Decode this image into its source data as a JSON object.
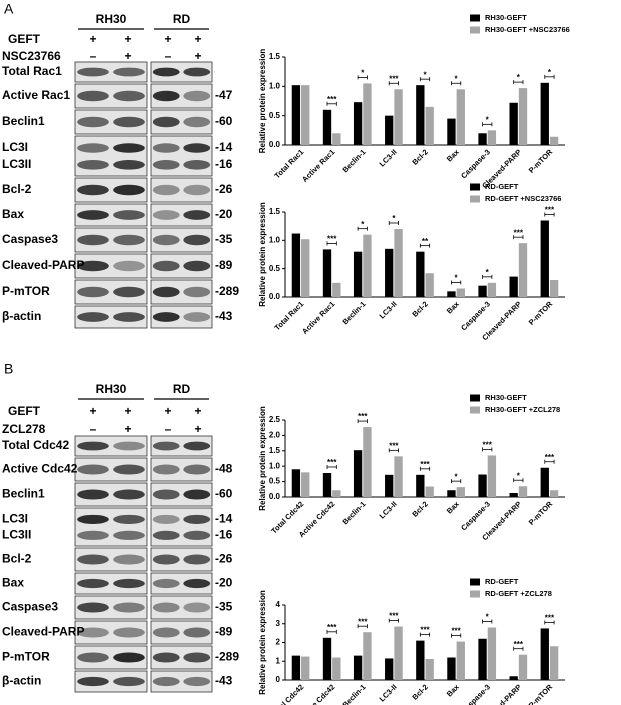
{
  "panel_labels": [
    "A",
    "B"
  ],
  "blots": [
    {
      "cell_lines": [
        "RH30",
        "RD"
      ],
      "treatments": [
        {
          "name": "GEFT",
          "signs": [
            "+",
            "+",
            "+",
            "+"
          ]
        },
        {
          "name": "NSC23766",
          "signs": [
            "–",
            "+",
            "–",
            "+"
          ]
        }
      ],
      "rows": [
        {
          "labels": [
            "Total Rac1"
          ],
          "mw": []
        },
        {
          "labels": [
            "Active Rac1"
          ],
          "mw": [
            "-47"
          ]
        },
        {
          "labels": [
            "Beclin1"
          ],
          "mw": [
            "-60"
          ]
        },
        {
          "labels": [
            "LC3I",
            "LC3II"
          ],
          "mw": [
            "-14",
            "-16"
          ]
        },
        {
          "labels": [
            "Bcl-2"
          ],
          "mw": [
            "-26"
          ]
        },
        {
          "labels": [
            "Bax"
          ],
          "mw": [
            "-20"
          ]
        },
        {
          "labels": [
            "Caspase3"
          ],
          "mw": [
            "-35"
          ]
        },
        {
          "labels": [
            "Cleaved-PARP"
          ],
          "mw": [
            "-89"
          ]
        },
        {
          "labels": [
            "P-mTOR"
          ],
          "mw": [
            "-289"
          ]
        },
        {
          "labels": [
            "β-actin"
          ],
          "mw": [
            "-43"
          ]
        }
      ]
    },
    {
      "cell_lines": [
        "RH30",
        "RD"
      ],
      "treatments": [
        {
          "name": "GEFT",
          "signs": [
            "+",
            "+",
            "+",
            "+"
          ]
        },
        {
          "name": "ZCL278",
          "signs": [
            "–",
            "+",
            "–",
            "+"
          ]
        }
      ],
      "rows": [
        {
          "labels": [
            "Total Cdc42"
          ],
          "mw": []
        },
        {
          "labels": [
            "Active Cdc42"
          ],
          "mw": [
            "-48"
          ]
        },
        {
          "labels": [
            "Beclin1"
          ],
          "mw": [
            "-60"
          ]
        },
        {
          "labels": [
            "LC3I",
            "LC3II"
          ],
          "mw": [
            "-14",
            "-16"
          ]
        },
        {
          "labels": [
            "Bcl-2"
          ],
          "mw": [
            "-26"
          ]
        },
        {
          "labels": [
            "Bax"
          ],
          "mw": [
            "-20"
          ]
        },
        {
          "labels": [
            "Caspase3"
          ],
          "mw": [
            "-35"
          ]
        },
        {
          "labels": [
            "Cleaved-PARP"
          ],
          "mw": [
            "-89"
          ]
        },
        {
          "labels": [
            "P-mTOR"
          ],
          "mw": [
            "-289"
          ]
        },
        {
          "labels": [
            "β-actin"
          ],
          "mw": [
            "-43"
          ]
        }
      ]
    }
  ],
  "chart_data": [
    {
      "type": "bar",
      "y_label": "Relative protein expression",
      "legend": "upper right",
      "categories": [
        "Total Rac1",
        "Active Rac1",
        "Beclin-1",
        "LC3-II",
        "Bcl-2",
        "Bax",
        "Caspase-3",
        "Cleaved-PARP",
        "P-mTOR"
      ],
      "series": [
        {
          "name": "RH30-GEFT",
          "color": "#000000",
          "values": [
            1.02,
            0.6,
            0.73,
            0.5,
            1.02,
            0.45,
            0.2,
            0.72,
            1.06
          ]
        },
        {
          "name": "RH30-GEFT +NSC23766",
          "color": "#a6a6a6",
          "values": [
            1.02,
            0.2,
            1.05,
            0.95,
            0.65,
            0.95,
            0.25,
            0.97,
            0.14
          ]
        }
      ],
      "significance": [
        null,
        "***",
        "*",
        "***",
        "*",
        "*",
        "*",
        "*",
        "*"
      ],
      "ylim": [
        0,
        1.5
      ],
      "yticks": [
        {
          "value": 0,
          "label": "0.0"
        },
        {
          "value": 0.5,
          "label": "0.5"
        },
        {
          "value": 1,
          "label": "1.0"
        },
        {
          "value": 1.5,
          "label": "1.5"
        }
      ]
    },
    {
      "type": "bar",
      "y_label": "Relative protein expression",
      "legend": "upper right",
      "categories": [
        "Total Rac1",
        "Active Rac1",
        "Beclin-1",
        "LC3-II",
        "Bcl-2",
        "Bax",
        "Caspase-3",
        "Cleaved-PARP",
        "P-mTOR"
      ],
      "series": [
        {
          "name": "RD-GEFT",
          "color": "#000000",
          "values": [
            1.12,
            0.84,
            0.8,
            0.85,
            0.8,
            0.1,
            0.2,
            0.36,
            1.35
          ]
        },
        {
          "name": "RD-GEFT +NSC23766",
          "color": "#a6a6a6",
          "values": [
            1.02,
            0.25,
            1.1,
            1.2,
            0.42,
            0.15,
            0.25,
            0.95,
            0.3
          ]
        }
      ],
      "significance": [
        null,
        "***",
        "*",
        "*",
        "**",
        "*",
        "*",
        "***",
        "***"
      ],
      "ylim": [
        0,
        1.5
      ],
      "yticks": [
        {
          "value": 0,
          "label": "0.0"
        },
        {
          "value": 0.5,
          "label": "0.5"
        },
        {
          "value": 1,
          "label": "1.0"
        },
        {
          "value": 1.5,
          "label": "1.5"
        }
      ]
    },
    {
      "type": "bar",
      "y_label": "Relative protein expression",
      "legend": "upper right",
      "categories": [
        "Total Cdc42",
        "Active Cdc42",
        "Beclin-1",
        "LC3-II",
        "Bcl-2",
        "Bax",
        "Caspase-3",
        "Cleaved-PARP",
        "P-mTOR"
      ],
      "series": [
        {
          "name": "RH30-GEFT",
          "color": "#000000",
          "values": [
            0.9,
            0.78,
            1.52,
            0.72,
            0.72,
            0.22,
            0.73,
            0.13,
            0.95
          ]
        },
        {
          "name": "RH30-GEFT +ZCL278",
          "color": "#a6a6a6",
          "values": [
            0.8,
            0.22,
            2.27,
            1.32,
            0.34,
            0.32,
            1.35,
            0.35,
            0.22
          ]
        }
      ],
      "significance": [
        null,
        "***",
        "***",
        "***",
        "***",
        "*",
        "***",
        "*",
        "***"
      ],
      "ylim": [
        0,
        2.5
      ],
      "yticks": [
        {
          "value": 0,
          "label": "0.0"
        },
        {
          "value": 0.5,
          "label": "0.5"
        },
        {
          "value": 1,
          "label": "1.0"
        },
        {
          "value": 1.5,
          "label": "1.5"
        },
        {
          "value": 2,
          "label": "2.0"
        },
        {
          "value": 2.5,
          "label": "2.5"
        }
      ]
    },
    {
      "type": "bar",
      "y_label": "Relative protein expression",
      "legend": "upper right",
      "categories": [
        "Total Cdc42",
        "Active Cdc42",
        "Beclin-1",
        "LC3-II",
        "Bcl-2",
        "Bax",
        "Caspase-3",
        "Cleaved-PARP",
        "P-mTOR"
      ],
      "series": [
        {
          "name": "RD-GEFT",
          "color": "#000000",
          "values": [
            1.3,
            2.25,
            1.3,
            1.15,
            2.1,
            1.2,
            2.2,
            0.2,
            2.75
          ]
        },
        {
          "name": "RD-GEFT +ZCL278",
          "color": "#a6a6a6",
          "values": [
            1.25,
            1.2,
            2.55,
            2.85,
            1.12,
            2.05,
            2.8,
            1.35,
            1.8
          ]
        }
      ],
      "significance": [
        null,
        "***",
        "***",
        "***",
        "***",
        "***",
        "*",
        "***",
        "***"
      ],
      "ylim": [
        0,
        4
      ],
      "yticks": [
        0,
        1,
        2,
        3,
        4
      ]
    }
  ]
}
